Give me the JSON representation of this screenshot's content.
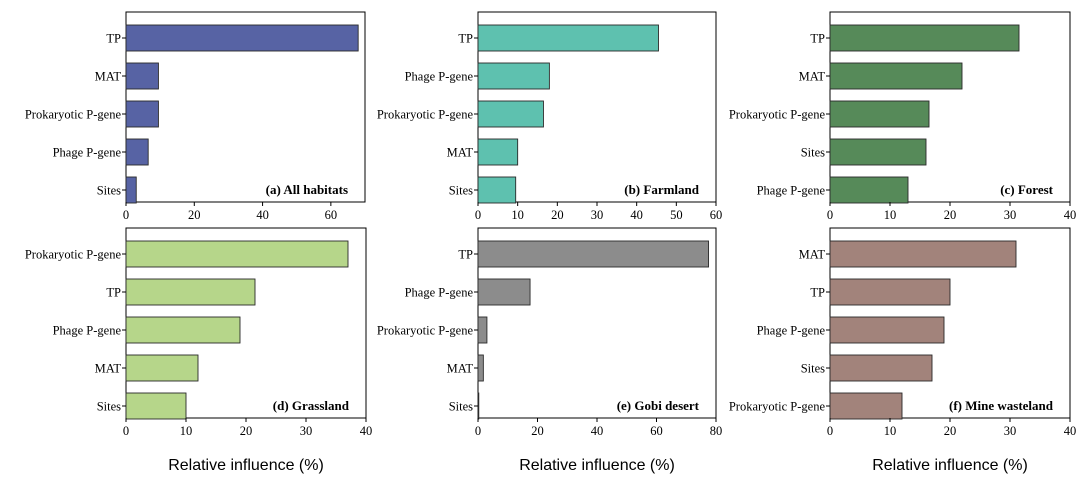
{
  "figure": {
    "x_axis_title": "Relative influence (%)"
  },
  "chart_data": [
    {
      "type": "bar",
      "orientation": "horizontal",
      "title": "(a) All habitats",
      "color": "#5763A4",
      "categories": [
        "TP",
        "MAT",
        "Prokaryotic P-gene",
        "Phage P-gene",
        "Sites"
      ],
      "values": [
        68,
        9.5,
        9.5,
        6.5,
        3
      ],
      "xlim": [
        0,
        70
      ],
      "xticks": [
        0,
        20,
        40,
        60
      ],
      "xlabel": "",
      "legend_position": "bottom-right"
    },
    {
      "type": "bar",
      "orientation": "horizontal",
      "title": "(b) Farmland",
      "color": "#5EC1AF",
      "categories": [
        "TP",
        "Phage P-gene",
        "Prokaryotic P-gene",
        "MAT",
        "Sites"
      ],
      "values": [
        45.5,
        18,
        16.5,
        10,
        9.5
      ],
      "xlim": [
        0,
        60
      ],
      "xticks": [
        0,
        10,
        20,
        30,
        40,
        50,
        60
      ],
      "xlabel": "",
      "legend_position": "bottom-right"
    },
    {
      "type": "bar",
      "orientation": "horizontal",
      "title": "(c) Forest",
      "color": "#568A59",
      "categories": [
        "TP",
        "MAT",
        "Prokaryotic P-gene",
        "Sites",
        "Phage P-gene"
      ],
      "values": [
        31.5,
        22,
        16.5,
        16,
        13
      ],
      "xlim": [
        0,
        40
      ],
      "xticks": [
        0,
        10,
        20,
        30,
        40
      ],
      "xlabel": "",
      "legend_position": "bottom-right"
    },
    {
      "type": "bar",
      "orientation": "horizontal",
      "title": "(d) Grassland",
      "color": "#B6D68A",
      "categories": [
        "Prokaryotic P-gene",
        "TP",
        "Phage P-gene",
        "MAT",
        "Sites"
      ],
      "values": [
        37,
        21.5,
        19,
        12,
        10
      ],
      "xlim": [
        0,
        40
      ],
      "xticks": [
        0,
        10,
        20,
        30,
        40
      ],
      "xlabel": "Relative influence (%)",
      "legend_position": "bottom-right"
    },
    {
      "type": "bar",
      "orientation": "horizontal",
      "title": "(e) Gobi desert",
      "color": "#8C8C8C",
      "categories": [
        "TP",
        "Phage P-gene",
        "Prokaryotic P-gene",
        "MAT",
        "Sites"
      ],
      "values": [
        77.5,
        17.5,
        3,
        1.8,
        0.2
      ],
      "xlim": [
        0,
        80
      ],
      "xticks": [
        0,
        20,
        40,
        60,
        80
      ],
      "xlabel": "Relative influence (%)",
      "legend_position": "bottom-right"
    },
    {
      "type": "bar",
      "orientation": "horizontal",
      "title": "(f) Mine wasteland",
      "color": "#A2837B",
      "categories": [
        "MAT",
        "TP",
        "Phage P-gene",
        "Sites",
        "Prokaryotic P-gene"
      ],
      "values": [
        31,
        20,
        19,
        17,
        12
      ],
      "xlim": [
        0,
        40
      ],
      "xticks": [
        0,
        10,
        20,
        30,
        40
      ],
      "xlabel": "Relative influence (%)",
      "legend_position": "bottom-right"
    }
  ]
}
